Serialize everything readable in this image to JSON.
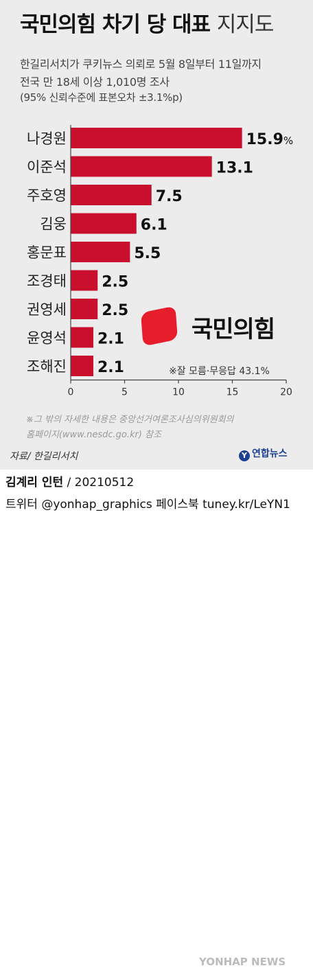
{
  "header": {
    "title_bold": "국민의힘 차기 당 대표",
    "title_light": "지지도",
    "subtitle_line1": "한길리서치가 쿠키뉴스 의뢰로 5월 8일부터 11일까지",
    "subtitle_line2": "전국 만 18세 이상 1,010명 조사",
    "subtitle_line3": "(95% 신뢰수준에 표본오차 ±3.1%p)"
  },
  "chart_data": {
    "type": "bar",
    "orientation": "horizontal",
    "categories": [
      "나경원",
      "이준석",
      "주호영",
      "김웅",
      "홍문표",
      "조경태",
      "권영세",
      "윤영석",
      "조해진"
    ],
    "values": [
      15.9,
      13.1,
      7.5,
      6.1,
      5.5,
      2.5,
      2.5,
      2.1,
      2.1
    ],
    "value_labels": [
      "15.9",
      "13.1",
      "7.5",
      "6.1",
      "5.5",
      "2.5",
      "2.5",
      "2.1",
      "2.1"
    ],
    "first_value_unit": "%",
    "xlim": [
      0,
      20
    ],
    "x_ticks": [
      "0",
      "5",
      "10",
      "15",
      "20"
    ],
    "bar_color": "#c8102e",
    "grid": false
  },
  "party_logo": {
    "text": "국민의힘",
    "color": "#e61e2b"
  },
  "note": "※잘 모름·무응답 43.1%",
  "footnote_line1": "※그 밖의 자세한 내용은 중앙선거여론조사심의위원회의",
  "footnote_line2": "홈페이지(www.nesdc.go.kr) 참조",
  "source": "자료/ 한길리서치",
  "agency_logo": "연합뉴스",
  "credit_line1_name": "김계리 인턴",
  "credit_line1_rest": " / 20210512",
  "credit_line2": "트위터 @yonhap_graphics  페이스북 tuney.kr/LeYN1",
  "watermark": "YONHAP NEWS"
}
